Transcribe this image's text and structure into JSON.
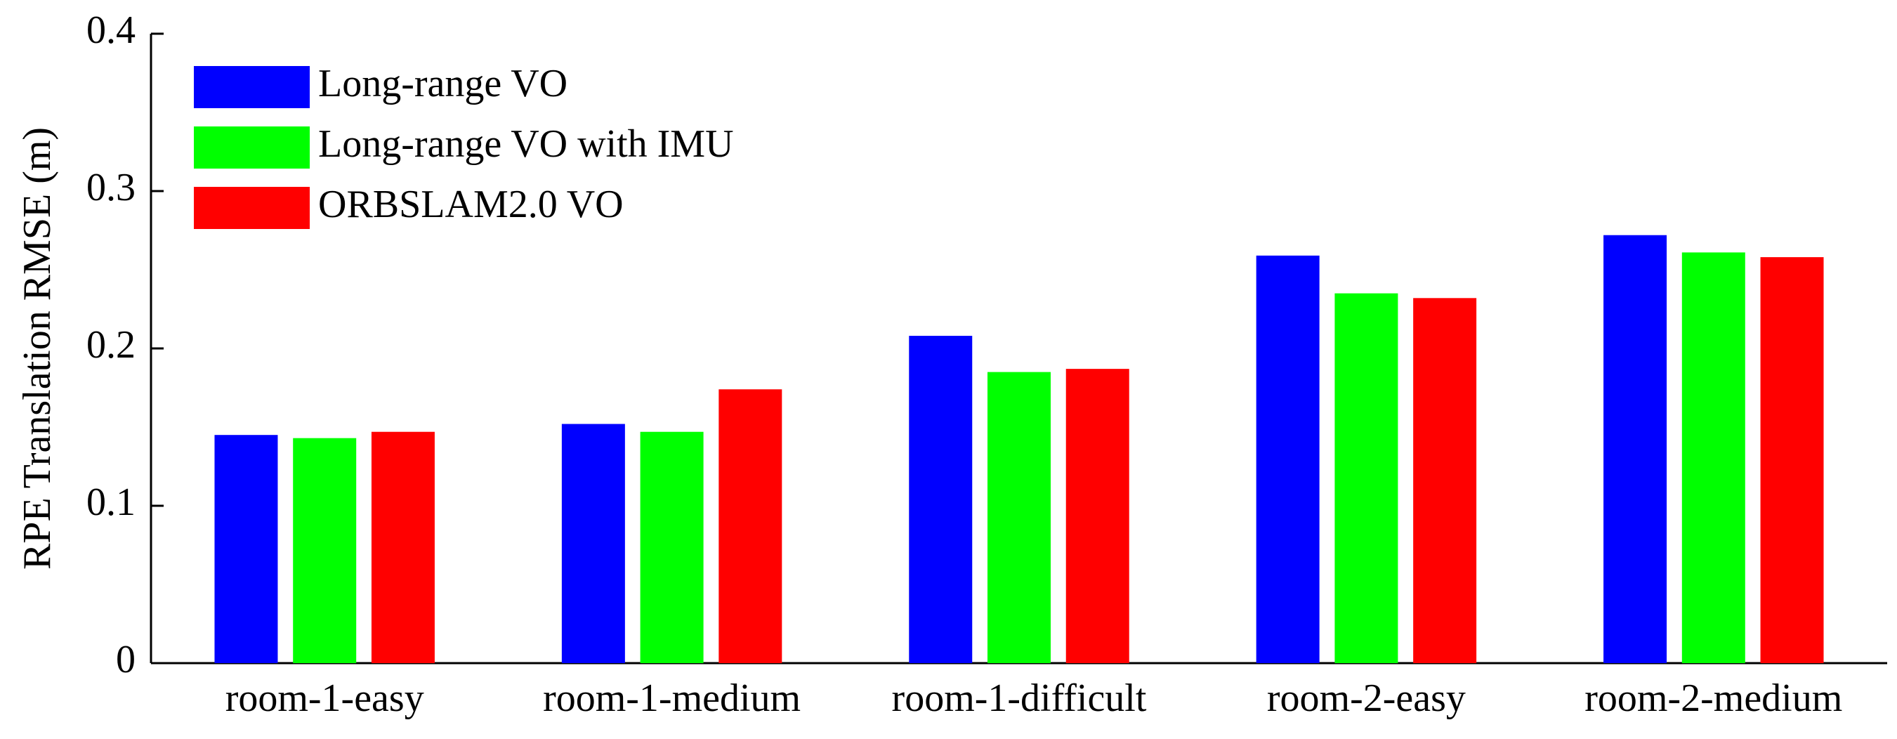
{
  "chart_data": {
    "type": "bar",
    "y_label": "RPE Translation RMSE (m)",
    "categories": [
      "room-1-easy",
      "room-1-medium",
      "room-1-difficult",
      "room-2-easy",
      "room-2-medium"
    ],
    "series": [
      {
        "name": "Long-range VO",
        "color": "#0000ff",
        "values": [
          0.145,
          0.152,
          0.208,
          0.259,
          0.272
        ]
      },
      {
        "name": "Long-range VO with IMU",
        "color": "#00ff00",
        "values": [
          0.143,
          0.147,
          0.185,
          0.235,
          0.261
        ]
      },
      {
        "name": "ORBSLAM2.0 VO",
        "color": "#ff0000",
        "values": [
          0.147,
          0.174,
          0.187,
          0.232,
          0.258
        ]
      }
    ],
    "ylim": [
      0,
      0.4
    ],
    "yticks": [
      0,
      0.1,
      0.2,
      0.3,
      0.4
    ],
    "legend": "upper-left"
  }
}
